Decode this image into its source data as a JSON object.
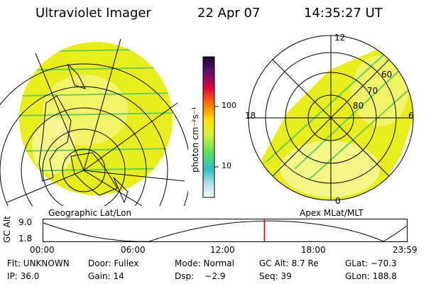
{
  "header": {
    "title": "Ultraviolet Imager",
    "date": "22 Apr 07",
    "time": "14:35:27 UT"
  },
  "left_panel": {
    "caption": "Geographic Lat/Lon"
  },
  "right_panel": {
    "caption": "Apex MLat/MLT",
    "mlt_labels": {
      "top": "12",
      "left": "18",
      "right": "6",
      "bottom": "0"
    },
    "lat_labels": [
      "60",
      "70",
      "80"
    ]
  },
  "colorbar": {
    "title": "photon cm⁻²s⁻¹",
    "ticks": [
      "100",
      "10"
    ]
  },
  "timeline": {
    "ylabel": "GC Alt",
    "yticks": [
      "9.0",
      "1.8"
    ],
    "xticks": [
      "00:00",
      "06:00",
      "12:00",
      "18:00",
      "23:59"
    ],
    "current_time_fraction": 0.607
  },
  "footer": {
    "row1": [
      "Flt: UNKNOWN",
      "Door: Fullex",
      "Mode: Normal",
      "GC Alt: 8.7 Re",
      "GLat: −70.3"
    ],
    "row2": [
      "IP: 36.0",
      "Gain: 14",
      "Dsp:    −2.9",
      "Seq: 39",
      "GLon: 188.8"
    ]
  },
  "colors": {
    "aurora_fill": "#e8ee1e",
    "aurora_light": "#f6f7a0",
    "stripe": "#56c85a",
    "grid": "#000000",
    "timeline_marker": "#e00000"
  }
}
